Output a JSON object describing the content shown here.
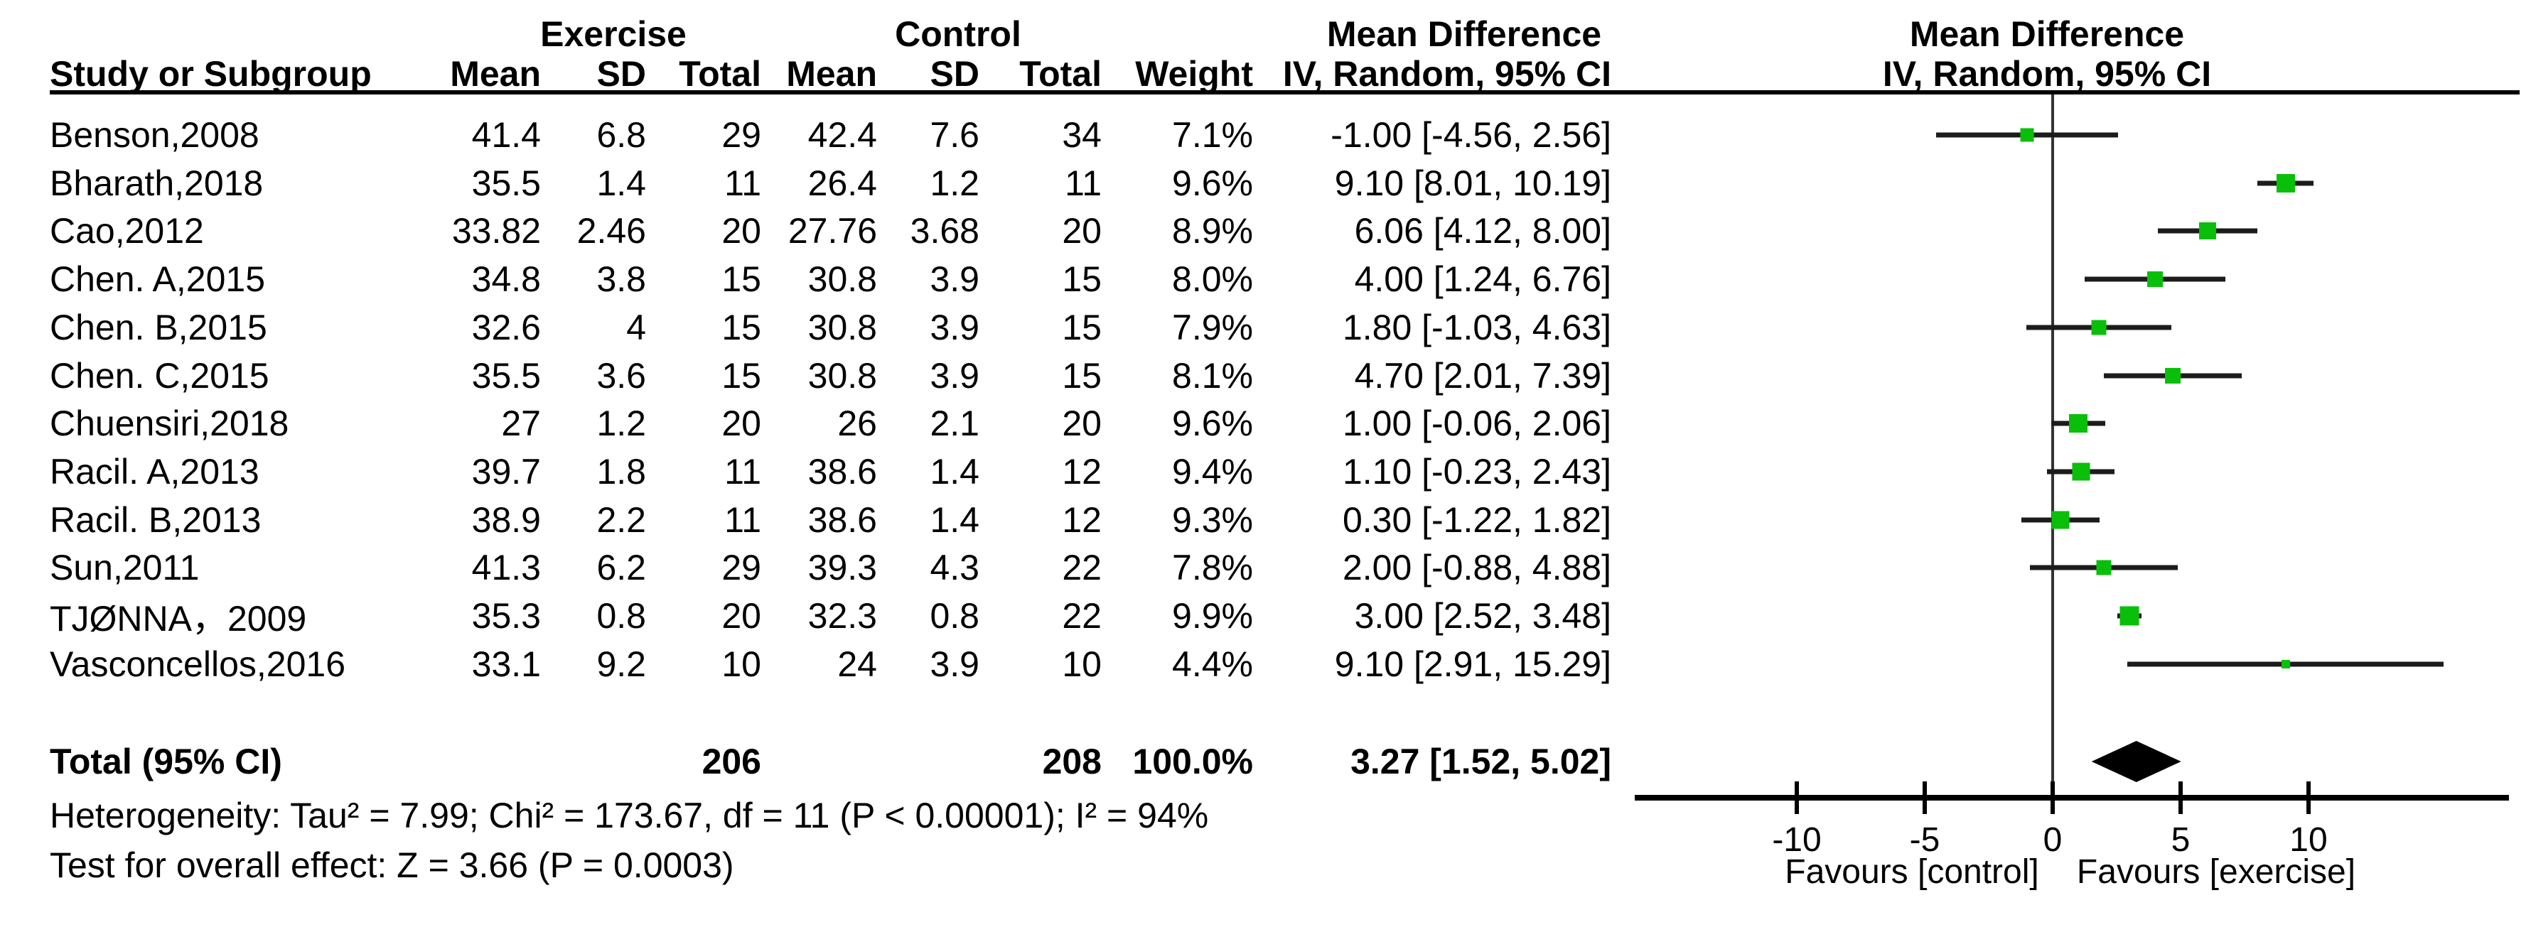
{
  "header": {
    "group_exercise": "Exercise",
    "group_control": "Control",
    "md_label_left": "Mean Difference",
    "md_label_right": "Mean Difference",
    "method_left": "IV, Random, 95% CI",
    "method_right": "IV, Random, 95% CI",
    "col_study": "Study or Subgroup",
    "col_mean": "Mean",
    "col_sd": "SD",
    "col_total": "Total",
    "col_weight": "Weight"
  },
  "footer": {
    "heterogeneity": "Heterogeneity: Tau² = 7.99; Chi² = 173.67, df = 11 (P < 0.00001); I² = 94%",
    "overall_effect": "Test for overall effect: Z = 3.66 (P = 0.0003)"
  },
  "colors": {
    "marker_green": "#0abf0a",
    "ci_line": "#1c1c1c",
    "zero_line": "#333333",
    "diamond": "#000000"
  },
  "chart_data": {
    "type": "forest",
    "effect_measure": "Mean Difference (IV, Random, 95% CI)",
    "x_ticks": [
      "-10",
      "-5",
      "0",
      "5",
      "10"
    ],
    "x_tick_values": [
      -10,
      -5,
      0,
      5,
      10
    ],
    "x_axis_range": [
      -16.3,
      17.8
    ],
    "favours_left": "Favours [control]",
    "favours_right": "Favours [exercise]",
    "studies": [
      {
        "name": "Benson,2008",
        "ex_mean": "41.4",
        "ex_sd": "6.8",
        "ex_total": "29",
        "c_mean": "42.4",
        "c_sd": "7.6",
        "c_total": "34",
        "weight": "7.1%",
        "ci_text": "-1.00 [-4.56, 2.56]",
        "md": -1.0,
        "lo": -4.56,
        "hi": 2.56,
        "weight_pct": 7.1
      },
      {
        "name": "Bharath,2018",
        "ex_mean": "35.5",
        "ex_sd": "1.4",
        "ex_total": "11",
        "c_mean": "26.4",
        "c_sd": "1.2",
        "c_total": "11",
        "weight": "9.6%",
        "ci_text": "9.10 [8.01, 10.19]",
        "md": 9.1,
        "lo": 8.01,
        "hi": 10.19,
        "weight_pct": 9.6
      },
      {
        "name": "Cao,2012",
        "ex_mean": "33.82",
        "ex_sd": "2.46",
        "ex_total": "20",
        "c_mean": "27.76",
        "c_sd": "3.68",
        "c_total": "20",
        "weight": "8.9%",
        "ci_text": "6.06 [4.12, 8.00]",
        "md": 6.06,
        "lo": 4.12,
        "hi": 8.0,
        "weight_pct": 8.9
      },
      {
        "name": "Chen. A,2015",
        "ex_mean": "34.8",
        "ex_sd": "3.8",
        "ex_total": "15",
        "c_mean": "30.8",
        "c_sd": "3.9",
        "c_total": "15",
        "weight": "8.0%",
        "ci_text": "4.00 [1.24, 6.76]",
        "md": 4.0,
        "lo": 1.24,
        "hi": 6.76,
        "weight_pct": 8.0
      },
      {
        "name": "Chen. B,2015",
        "ex_mean": "32.6",
        "ex_sd": "4",
        "ex_total": "15",
        "c_mean": "30.8",
        "c_sd": "3.9",
        "c_total": "15",
        "weight": "7.9%",
        "ci_text": "1.80 [-1.03, 4.63]",
        "md": 1.8,
        "lo": -1.03,
        "hi": 4.63,
        "weight_pct": 7.9
      },
      {
        "name": "Chen. C,2015",
        "ex_mean": "35.5",
        "ex_sd": "3.6",
        "ex_total": "15",
        "c_mean": "30.8",
        "c_sd": "3.9",
        "c_total": "15",
        "weight": "8.1%",
        "ci_text": "4.70 [2.01, 7.39]",
        "md": 4.7,
        "lo": 2.01,
        "hi": 7.39,
        "weight_pct": 8.1
      },
      {
        "name": "Chuensiri,2018",
        "ex_mean": "27",
        "ex_sd": "1.2",
        "ex_total": "20",
        "c_mean": "26",
        "c_sd": "2.1",
        "c_total": "20",
        "weight": "9.6%",
        "ci_text": "1.00 [-0.06, 2.06]",
        "md": 1.0,
        "lo": -0.06,
        "hi": 2.06,
        "weight_pct": 9.6
      },
      {
        "name": "Racil. A,2013",
        "ex_mean": "39.7",
        "ex_sd": "1.8",
        "ex_total": "11",
        "c_mean": "38.6",
        "c_sd": "1.4",
        "c_total": "12",
        "weight": "9.4%",
        "ci_text": "1.10 [-0.23, 2.43]",
        "md": 1.1,
        "lo": -0.23,
        "hi": 2.43,
        "weight_pct": 9.4
      },
      {
        "name": "Racil. B,2013",
        "ex_mean": "38.9",
        "ex_sd": "2.2",
        "ex_total": "11",
        "c_mean": "38.6",
        "c_sd": "1.4",
        "c_total": "12",
        "weight": "9.3%",
        "ci_text": "0.30 [-1.22, 1.82]",
        "md": 0.3,
        "lo": -1.22,
        "hi": 1.82,
        "weight_pct": 9.3
      },
      {
        "name": "Sun,2011",
        "ex_mean": "41.3",
        "ex_sd": "6.2",
        "ex_total": "29",
        "c_mean": "39.3",
        "c_sd": "4.3",
        "c_total": "22",
        "weight": "7.8%",
        "ci_text": "2.00 [-0.88, 4.88]",
        "md": 2.0,
        "lo": -0.88,
        "hi": 4.88,
        "weight_pct": 7.8
      },
      {
        "name": "TJØNNA，2009",
        "ex_mean": "35.3",
        "ex_sd": "0.8",
        "ex_total": "20",
        "c_mean": "32.3",
        "c_sd": "0.8",
        "c_total": "22",
        "weight": "9.9%",
        "ci_text": "3.00 [2.52, 3.48]",
        "md": 3.0,
        "lo": 2.52,
        "hi": 3.48,
        "weight_pct": 9.9
      },
      {
        "name": "Vasconcellos,2016",
        "ex_mean": "33.1",
        "ex_sd": "9.2",
        "ex_total": "10",
        "c_mean": "24",
        "c_sd": "3.9",
        "c_total": "10",
        "weight": "4.4%",
        "ci_text": "9.10 [2.91, 15.29]",
        "md": 9.1,
        "lo": 2.91,
        "hi": 15.29,
        "weight_pct": 4.4
      }
    ],
    "total": {
      "label": "Total (95% CI)",
      "ex_total": "206",
      "c_total": "208",
      "weight": "100.0%",
      "ci_text": "3.27 [1.52, 5.02]",
      "md": 3.27,
      "lo": 1.52,
      "hi": 5.02
    }
  }
}
